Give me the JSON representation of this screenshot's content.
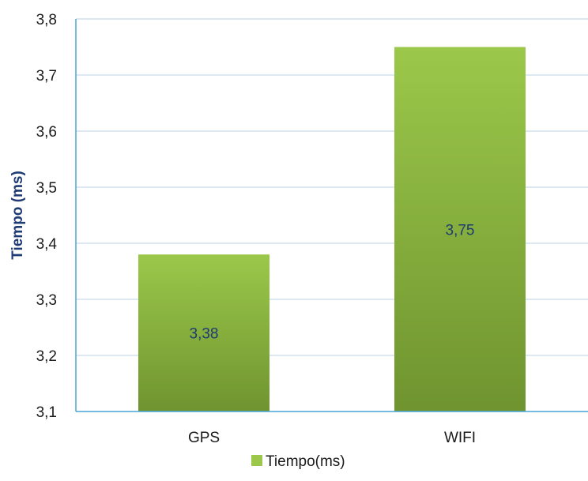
{
  "chart_data": {
    "type": "bar",
    "categories": [
      "GPS",
      "WIFI"
    ],
    "series": [
      {
        "name": "Tiempo(ms)",
        "values": [
          3.38,
          3.75
        ]
      }
    ],
    "data_labels": [
      "3,38",
      "3,75"
    ],
    "title": "",
    "xlabel": "",
    "ylabel": "Tiempo (ms)",
    "ylim": [
      3.1,
      3.8
    ],
    "yticks": [
      3.1,
      3.2,
      3.3,
      3.4,
      3.5,
      3.6,
      3.7,
      3.8
    ],
    "ytick_labels": [
      "3,1",
      "3,2",
      "3,3",
      "3,4",
      "3,5",
      "3,6",
      "3,7",
      "3,8"
    ],
    "grid": true,
    "legend_position": "bottom",
    "colors": {
      "bar_top": "#9bc84a",
      "bar_bottom": "#6f9430",
      "grid": "#c6dce9",
      "axis": "#4aa3d8",
      "label_text": "#1f3b73",
      "tick_text": "#1a1a1a"
    }
  }
}
